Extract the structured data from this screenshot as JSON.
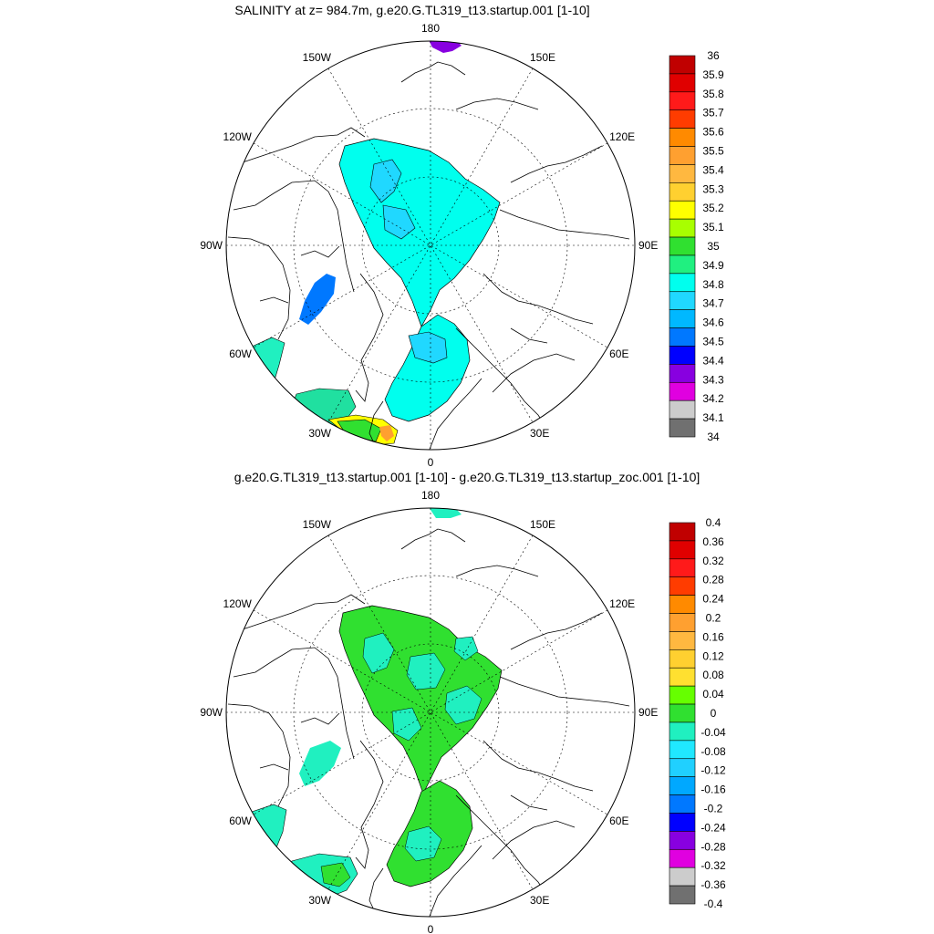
{
  "panels": [
    {
      "title": "SALINITY at z= 984.7m, g.e20.G.TL319_t13.startup.001 [1-10]",
      "lon_labels": [
        "180",
        "150E",
        "120E",
        "90E",
        "60E",
        "30E",
        "0",
        "30W",
        "60W",
        "90W",
        "120W",
        "150W"
      ],
      "colorbar": {
        "labels": [
          "36",
          "35.9",
          "35.8",
          "35.7",
          "35.6",
          "35.5",
          "35.4",
          "35.3",
          "35.2",
          "35.1",
          "35",
          "34.9",
          "34.8",
          "34.7",
          "34.6",
          "34.5",
          "34.4",
          "34.3",
          "34.2",
          "34.1",
          "34"
        ],
        "colors": [
          "#c00000",
          "#e00000",
          "#ff1a1a",
          "#ff3c00",
          "#ff8a00",
          "#ffa030",
          "#ffb840",
          "#ffd030",
          "#ffff00",
          "#a8ff00",
          "#30e030",
          "#20f080",
          "#00ffee",
          "#20d8ff",
          "#00b8ff",
          "#0078ff",
          "#0000ff",
          "#8800e0",
          "#e000e0",
          "#cccccc",
          "#707070"
        ]
      }
    },
    {
      "title": "g.e20.G.TL319_t13.startup.001 [1-10] - g.e20.G.TL319_t13.startup_zoc.001 [1-10]",
      "lon_labels": [
        "180",
        "150E",
        "120E",
        "90E",
        "60E",
        "30E",
        "0",
        "30W",
        "60W",
        "90W",
        "120W",
        "150W"
      ],
      "colorbar": {
        "labels": [
          "0.4",
          "0.36",
          "0.32",
          "0.28",
          "0.24",
          "0.2",
          "0.16",
          "0.12",
          "0.08",
          "0.04",
          "0",
          "-0.04",
          "-0.08",
          "-0.12",
          "-0.16",
          "-0.2",
          "-0.24",
          "-0.28",
          "-0.32",
          "-0.36",
          "-0.4"
        ],
        "colors": [
          "#c00000",
          "#e00000",
          "#ff1a1a",
          "#ff3c00",
          "#ff8a00",
          "#ffa030",
          "#ffb840",
          "#ffd030",
          "#ffe030",
          "#66ff00",
          "#30e030",
          "#20f0c0",
          "#20e8ff",
          "#20d0ff",
          "#00a8ff",
          "#0078ff",
          "#0000ff",
          "#8800e0",
          "#e000e0",
          "#cccccc",
          "#707070"
        ]
      }
    }
  ]
}
